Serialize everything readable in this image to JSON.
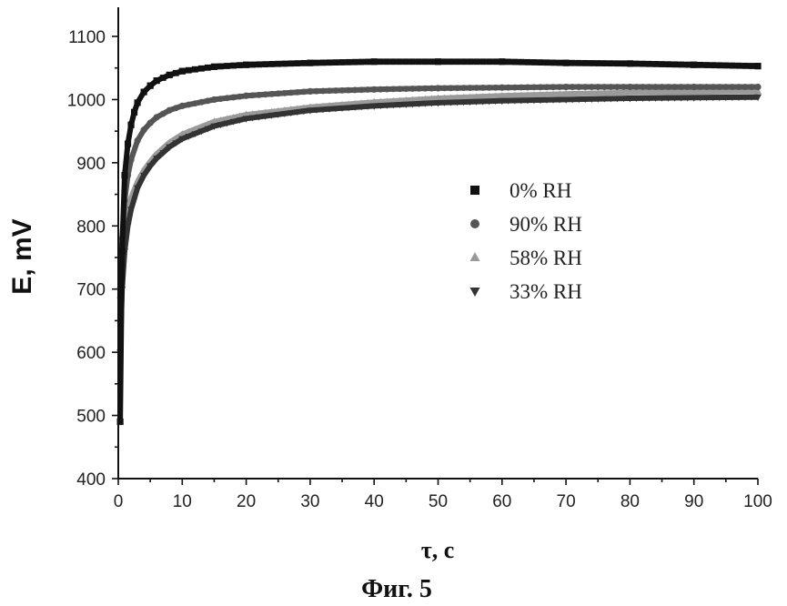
{
  "figure_caption": "Фиг. 5",
  "chart_data": {
    "type": "scatter",
    "xlabel": "τ, c",
    "ylabel": "E, mV",
    "xlim": [
      0,
      100
    ],
    "ylim": [
      400,
      1150
    ],
    "x_ticks": [
      0,
      10,
      20,
      30,
      40,
      50,
      60,
      70,
      80,
      90,
      100
    ],
    "y_ticks": [
      400,
      500,
      600,
      700,
      800,
      900,
      1000,
      1100
    ],
    "legend_position": "center-right",
    "series": [
      {
        "name": "0% RH",
        "marker": "square",
        "color": "#111111",
        "x": [
          0.3,
          0.6,
          1,
          1.5,
          2,
          2.5,
          3,
          4,
          5,
          6,
          8,
          10,
          15,
          20,
          30,
          40,
          50,
          60,
          70,
          80,
          90,
          100
        ],
        "y": [
          490,
          760,
          880,
          930,
          960,
          980,
          995,
          1012,
          1022,
          1030,
          1039,
          1045,
          1052,
          1055,
          1058,
          1060,
          1060,
          1060,
          1058,
          1057,
          1055,
          1053
        ]
      },
      {
        "name": "90% RH",
        "marker": "circle",
        "color": "#555555",
        "x": [
          0.3,
          0.6,
          1,
          1.5,
          2,
          3,
          4,
          5,
          6,
          8,
          10,
          15,
          20,
          30,
          40,
          50,
          60,
          70,
          80,
          90,
          100
        ],
        "y": [
          700,
          780,
          840,
          880,
          905,
          935,
          952,
          963,
          972,
          983,
          990,
          1000,
          1006,
          1013,
          1016,
          1018,
          1019,
          1020,
          1020,
          1020,
          1020
        ]
      },
      {
        "name": "58% RH",
        "marker": "triangle-up",
        "color": "#9a9a9a",
        "x": [
          0.3,
          0.6,
          1,
          1.5,
          2,
          3,
          4,
          5,
          6,
          8,
          10,
          15,
          20,
          30,
          40,
          50,
          60,
          70,
          80,
          90,
          100
        ],
        "y": [
          690,
          760,
          800,
          828,
          845,
          870,
          888,
          902,
          914,
          932,
          945,
          965,
          976,
          988,
          996,
          1002,
          1006,
          1009,
          1011,
          1012,
          1013
        ]
      },
      {
        "name": "33% RH",
        "marker": "triangle-down",
        "color": "#333333",
        "x": [
          0.3,
          0.6,
          1,
          1.5,
          2,
          3,
          4,
          5,
          6,
          8,
          10,
          15,
          20,
          30,
          40,
          50,
          60,
          70,
          80,
          90,
          100
        ],
        "y": [
          600,
          700,
          760,
          800,
          826,
          860,
          880,
          895,
          907,
          925,
          938,
          958,
          970,
          983,
          990,
          995,
          998,
          1000,
          1002,
          1003,
          1004
        ]
      }
    ]
  }
}
